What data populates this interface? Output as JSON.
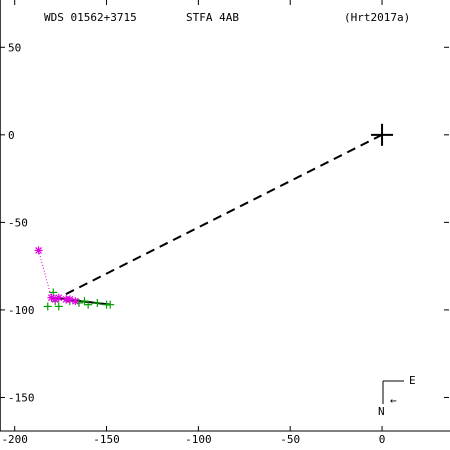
{
  "header": {
    "left": "WDS 01562+3715",
    "center": "STFA  4AB",
    "right": "(Hrt2017a)"
  },
  "compass": {
    "east_label": "E",
    "north_label": "N",
    "arrow_glyph": "←"
  },
  "colors": {
    "axis": "#000000",
    "orbit": "#000000",
    "measures_green": "#00a000",
    "measures_magenta": "#e000e0"
  },
  "chart_data": {
    "type": "scatter",
    "title": "",
    "xlabel": "",
    "ylabel": "",
    "xlim": [
      -208,
      37
    ],
    "ylim": [
      -180,
      77
    ],
    "x_ticks": [
      -200,
      -150,
      -100,
      -50,
      0
    ],
    "y_ticks": [
      50,
      0,
      -50,
      -100,
      -150
    ],
    "tick_labels": {
      "x": [
        "-200",
        "-150",
        "-100",
        "-50",
        "0"
      ],
      "y": [
        "50",
        "0",
        "-50",
        "-100",
        "-150"
      ]
    },
    "primary": {
      "x": 0,
      "y": 0,
      "marker": "plus-large"
    },
    "dashed_line": {
      "from": [
        0,
        0
      ],
      "to": [
        -176,
        -93
      ]
    },
    "solid_line": {
      "from": [
        -180,
        -93
      ],
      "to": [
        -148,
        -97
      ]
    },
    "series": [
      {
        "marker": "plus",
        "color": "#00a000",
        "points": [
          [
            -182,
            -98
          ],
          [
            -179,
            -90
          ],
          [
            -178,
            -95
          ],
          [
            -176,
            -98
          ],
          [
            -172,
            -94
          ],
          [
            -170,
            -95
          ],
          [
            -165,
            -96
          ],
          [
            -162,
            -95
          ],
          [
            -160,
            -97
          ],
          [
            -155,
            -96
          ],
          [
            -150,
            -97
          ],
          [
            -148,
            -97
          ]
        ]
      },
      {
        "marker": "asterisk",
        "color": "#e000e0",
        "points": [
          [
            -187,
            -66
          ],
          [
            -180,
            -93
          ],
          [
            -178,
            -94
          ],
          [
            -176,
            -93
          ],
          [
            -172,
            -94
          ],
          [
            -170,
            -94
          ],
          [
            -167,
            -95
          ]
        ]
      }
    ],
    "dotted_link": {
      "from": [
        -187,
        -66
      ],
      "to": [
        -180,
        -93
      ]
    }
  }
}
